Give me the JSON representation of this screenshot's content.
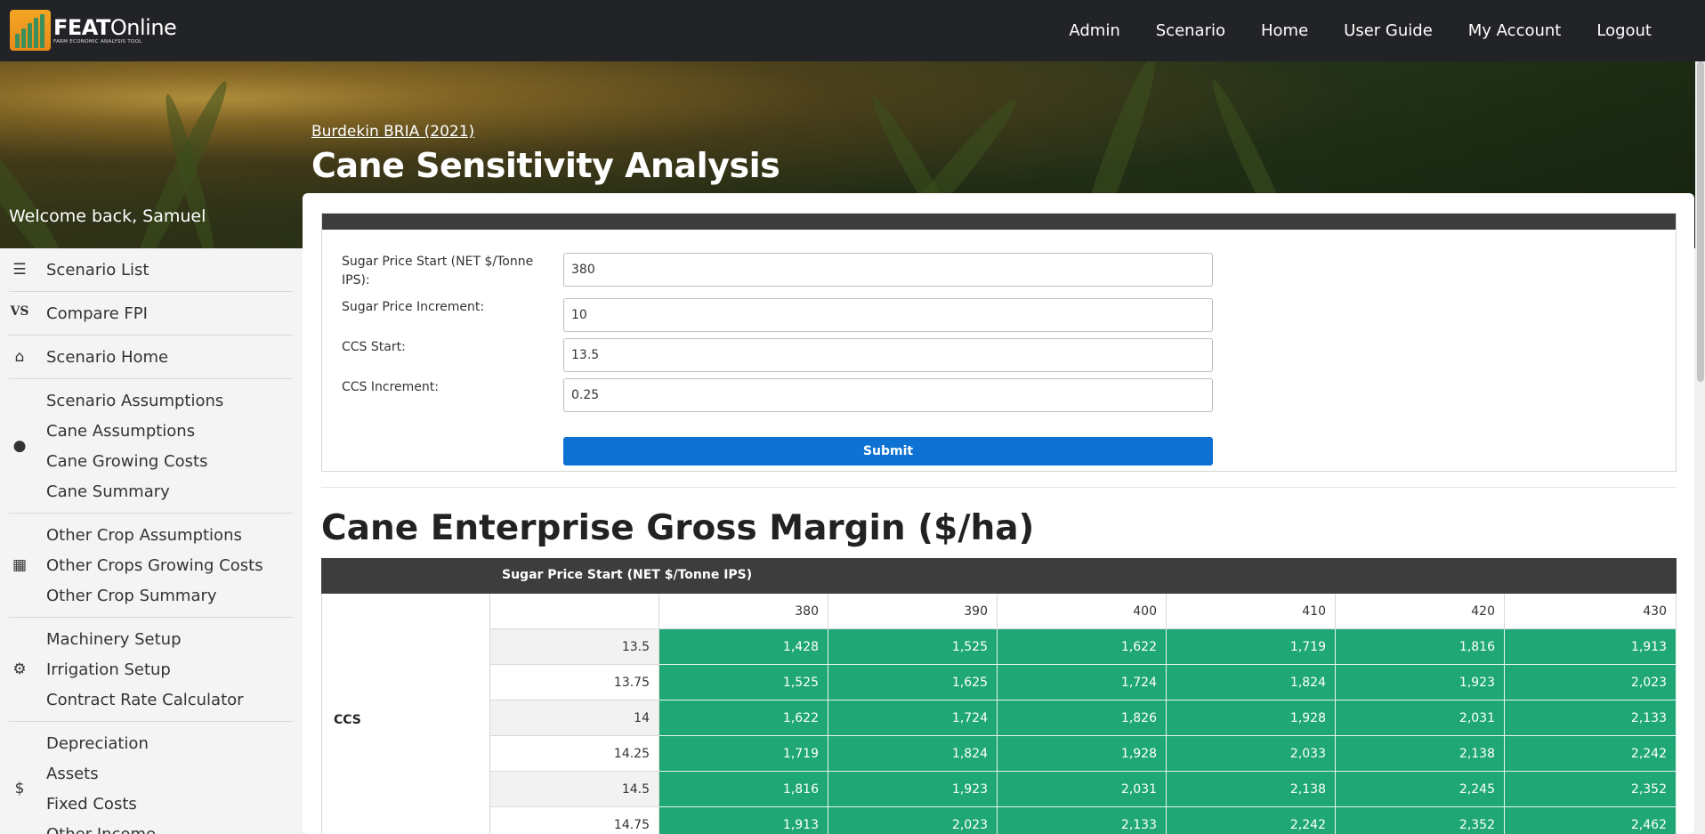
{
  "brand": {
    "name_bold": "FEAT",
    "name_rest": "Online",
    "tagline": "FARM ECONOMIC ANALYSIS TOOL"
  },
  "nav": [
    "Admin",
    "Scenario",
    "Home",
    "User Guide",
    "My Account",
    "Logout"
  ],
  "hero": {
    "breadcrumb": "Burdekin BRIA (2021)",
    "title": "Cane Sensitivity Analysis"
  },
  "welcome": "Welcome back, Samuel",
  "sidebar": [
    {
      "icon": "list-icon",
      "glyph": "☰",
      "items": [
        "Scenario List"
      ]
    },
    {
      "icon": "vs-icon",
      "glyph": "VS",
      "items": [
        "Compare FPI"
      ]
    },
    {
      "icon": "home-icon",
      "glyph": "⌂",
      "items": [
        "Scenario Home"
      ]
    },
    {
      "icon": "map-pin-icon",
      "glyph": "●",
      "items": [
        "Scenario Assumptions",
        "Cane Assumptions",
        "Cane Growing Costs",
        "Cane Summary"
      ]
    },
    {
      "icon": "grid-icon",
      "glyph": "▦",
      "items": [
        "Other Crop Assumptions",
        "Other Crops Growing Costs",
        "Other Crop Summary"
      ]
    },
    {
      "icon": "gear-icon",
      "glyph": "⚙",
      "items": [
        "Machinery Setup",
        "Irrigation Setup",
        "Contract Rate Calculator"
      ]
    },
    {
      "icon": "dollar-icon",
      "glyph": "$",
      "items": [
        "Depreciation",
        "Assets",
        "Fixed Costs",
        "Other Income"
      ]
    }
  ],
  "form": {
    "sugar_price_start_label": "Sugar Price Start (NET $/Tonne IPS):",
    "sugar_price_start_value": "380",
    "sugar_price_increment_label": "Sugar Price Increment:",
    "sugar_price_increment_value": "10",
    "ccs_start_label": "CCS Start:",
    "ccs_start_value": "13.5",
    "ccs_increment_label": "CCS Increment:",
    "ccs_increment_value": "0.25",
    "submit_label": "Submit"
  },
  "gross_margin": {
    "title": "Cane Enterprise Gross Margin ($/ha)",
    "column_group_label": "Sugar Price Start (NET $/Tonne IPS)",
    "row_group_label": "CCS",
    "columns": [
      "380",
      "390",
      "400",
      "410",
      "420",
      "430"
    ],
    "rows": [
      {
        "ccs": "13.5",
        "values": [
          "1,428",
          "1,525",
          "1,622",
          "1,719",
          "1,816",
          "1,913"
        ]
      },
      {
        "ccs": "13.75",
        "values": [
          "1,525",
          "1,625",
          "1,724",
          "1,824",
          "1,923",
          "2,023"
        ]
      },
      {
        "ccs": "14",
        "values": [
          "1,622",
          "1,724",
          "1,826",
          "1,928",
          "2,031",
          "2,133"
        ]
      },
      {
        "ccs": "14.25",
        "values": [
          "1,719",
          "1,824",
          "1,928",
          "2,033",
          "2,138",
          "2,242"
        ]
      },
      {
        "ccs": "14.5",
        "values": [
          "1,816",
          "1,923",
          "2,031",
          "2,138",
          "2,245",
          "2,352"
        ]
      },
      {
        "ccs": "14.75",
        "values": [
          "1,913",
          "2,023",
          "2,133",
          "2,242",
          "2,352",
          "2,462"
        ]
      }
    ]
  },
  "colors": {
    "nav_bg": "#222326",
    "accent_blue": "#0d72d4",
    "cell_green": "#1fa876",
    "table_header": "#3d3d3d"
  }
}
